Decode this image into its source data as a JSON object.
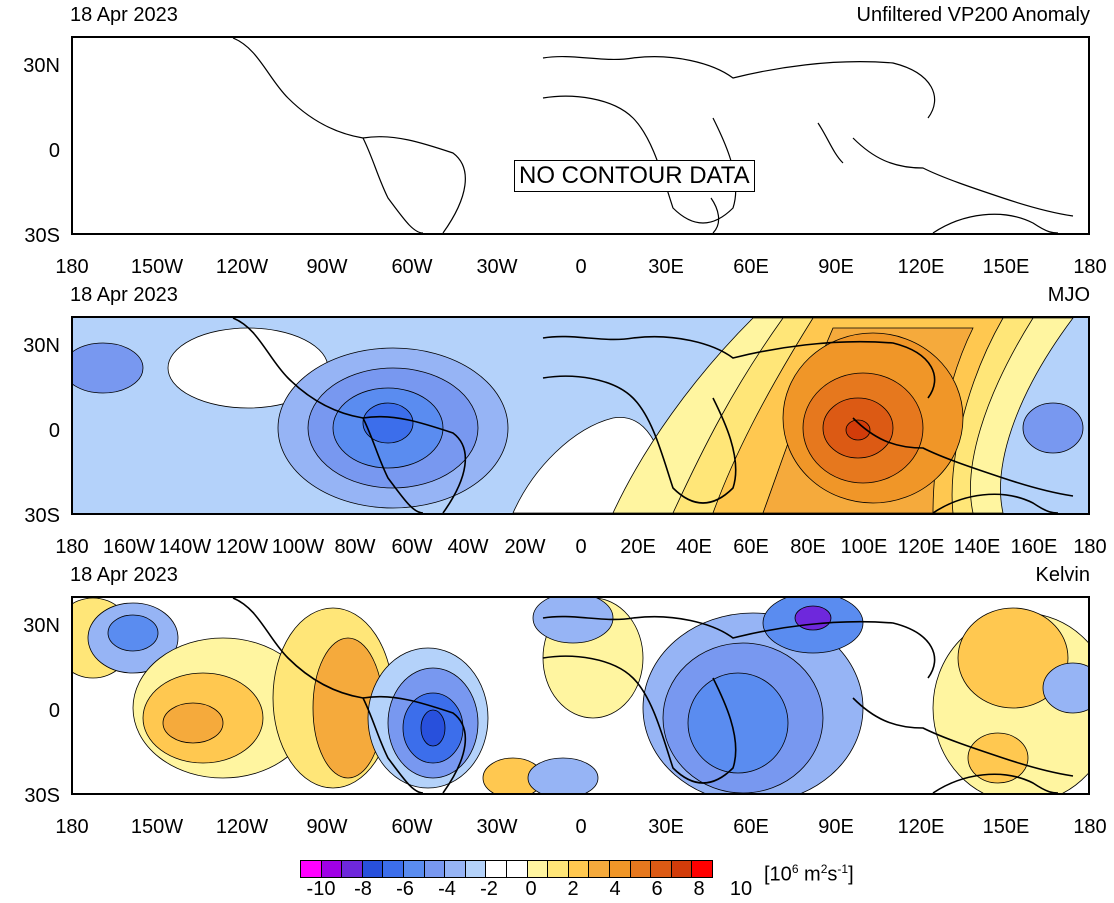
{
  "panels": [
    {
      "date": "18 Apr 2023",
      "title": "Unfiltered VP200 Anomaly",
      "ylabels": [
        "30N",
        "0",
        "30S"
      ],
      "xlabels": [
        "180",
        "150W",
        "120W",
        "90W",
        "60W",
        "30W",
        "0",
        "30E",
        "60E",
        "90E",
        "120E",
        "150E",
        "180"
      ],
      "annotation": "NO CONTOUR DATA"
    },
    {
      "date": "18 Apr 2023",
      "title": "MJO",
      "ylabels": [
        "30N",
        "0",
        "30S"
      ],
      "xlabels": [
        "180",
        "160W",
        "140W",
        "120W",
        "100W",
        "80W",
        "60W",
        "40W",
        "20W",
        "0",
        "20E",
        "40E",
        "60E",
        "80E",
        "100E",
        "120E",
        "140E",
        "160E",
        "180"
      ]
    },
    {
      "date": "18 Apr 2023",
      "title": "Kelvin",
      "ylabels": [
        "30N",
        "0",
        "30S"
      ],
      "xlabels": [
        "180",
        "150W",
        "120W",
        "90W",
        "60W",
        "30W",
        "0",
        "30E",
        "60E",
        "90E",
        "120E",
        "150E",
        "180"
      ]
    }
  ],
  "colorbar": {
    "colors": [
      "#ff00ff",
      "#a000e6",
      "#6e28dc",
      "#2850dc",
      "#3c6eeb",
      "#5a8cf0",
      "#7898f0",
      "#96b4f5",
      "#b4d2fa",
      "#ffffff",
      "#ffffff",
      "#fff5a0",
      "#ffe678",
      "#ffc850",
      "#f5aa3c",
      "#f09628",
      "#e6781e",
      "#dc5a14",
      "#d23c0a",
      "#ff0000"
    ],
    "tick_labels": [
      "-10",
      "-8",
      "-6",
      "-4",
      "-2",
      "0",
      "2",
      "4",
      "6",
      "8",
      "10"
    ],
    "units_base": "[10",
    "units_exp1": "6",
    "units_mid": " m",
    "units_exp2": "2",
    "units_mid2": "s",
    "units_exp3": "-1",
    "units_end": "]"
  }
}
